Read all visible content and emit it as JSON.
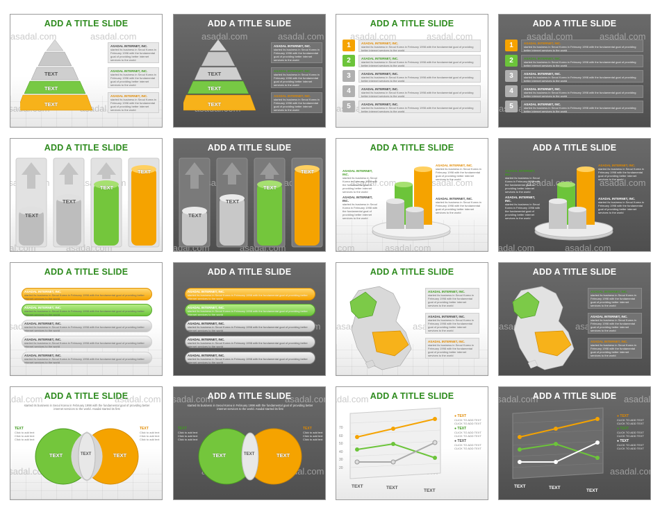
{
  "watermark": "asadal.com",
  "slide_title": "ADD A TITLE SLIDE",
  "company": "ASADAL INTERNET, INC.",
  "body_short": "started its business in Seoul Korea in February 1998 with the fundamental goal of providing better internet services to the world",
  "text_label": "TEXT",
  "numbers": [
    "1",
    "2",
    "3",
    "4",
    "5"
  ],
  "click_text": "Click to add text",
  "click_text_caps": "CLICK TO ADD TEXT",
  "y_ticks": [
    "70",
    "60",
    "50",
    "40",
    "30",
    "20"
  ],
  "intro": "started its business in Seoul Korea in February 1998 with the fundamental goal of providing better internet services to the world. Asadal started its first",
  "colors": {
    "green": "#6cc43a",
    "orange": "#f5a300",
    "gray": "#b5b5b5",
    "title_green": "#2e8b1e",
    "dark_bg": "#5e5e5e"
  }
}
